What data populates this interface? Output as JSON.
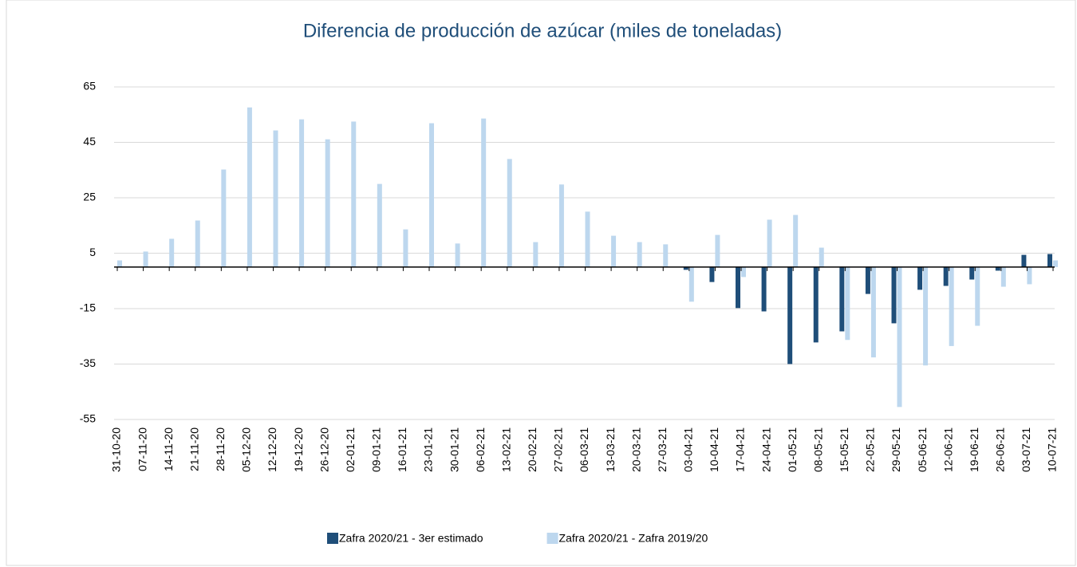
{
  "chart_data": {
    "type": "bar",
    "title": "Diferencia de producción de azúcar (miles de toneladas)",
    "categories": [
      "31-10-20",
      "07-11-20",
      "14-11-20",
      "21-11-20",
      "28-11-20",
      "05-12-20",
      "12-12-20",
      "19-12-20",
      "26-12-20",
      "02-01-21",
      "09-01-21",
      "16-01-21",
      "23-01-21",
      "30-01-21",
      "06-02-21",
      "13-02-21",
      "20-02-21",
      "27-02-21",
      "06-03-21",
      "13-03-21",
      "20-03-21",
      "27-03-21",
      "03-04-21",
      "10-04-21",
      "17-04-21",
      "24-04-21",
      "01-05-21",
      "08-05-21",
      "15-05-21",
      "22-05-21",
      "29-05-21",
      "05-06-21",
      "12-06-21",
      "19-06-21",
      "26-06-21",
      "03-07-21",
      "10-07-21"
    ],
    "series": [
      {
        "name": "Zafra 2020/21 - 3er estimado",
        "color": "#1f4e79",
        "values": [
          null,
          null,
          null,
          null,
          null,
          null,
          null,
          null,
          null,
          null,
          null,
          null,
          null,
          null,
          null,
          null,
          null,
          null,
          null,
          null,
          null,
          null,
          -1,
          -5.4,
          -14.8,
          -16,
          -35,
          -27.2,
          -23.2,
          -9.7,
          -20.3,
          -8.2,
          -6.8,
          -4.5,
          -1.3,
          4.4,
          4.7
        ]
      },
      {
        "name": "Zafra 2020/21 - Zafra 2019/20",
        "color": "#bdd7ee",
        "values": [
          2.4,
          5.6,
          10.2,
          16.8,
          35.2,
          57.6,
          49.3,
          53.3,
          46.1,
          52.5,
          30,
          13.6,
          51.9,
          8.5,
          53.6,
          39,
          9,
          29.8,
          20,
          11.3,
          9,
          8.2,
          -12.5,
          11.6,
          -3.6,
          17.1,
          18.8,
          7,
          -26.3,
          -32.6,
          -50.5,
          -35.5,
          -28.5,
          -21.2,
          -7.1,
          -6.2,
          2.4
        ]
      }
    ],
    "ylim": [
      -55,
      65
    ],
    "yticks": [
      -55,
      -35,
      -15,
      5,
      25,
      45,
      65
    ],
    "grid": true
  }
}
